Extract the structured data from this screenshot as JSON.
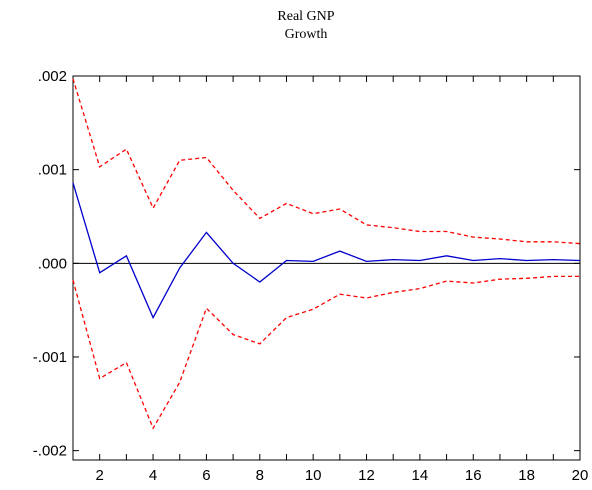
{
  "chart_data": {
    "type": "line",
    "title": "Real GNP",
    "subtitle": "Growth",
    "xlabel": "",
    "ylabel": "",
    "x": [
      1,
      2,
      3,
      4,
      5,
      6,
      7,
      8,
      9,
      10,
      11,
      12,
      13,
      14,
      15,
      16,
      17,
      18,
      19,
      20
    ],
    "xlim": [
      1,
      20
    ],
    "ylim": [
      -0.0021,
      0.002
    ],
    "xticks": [
      2,
      4,
      6,
      8,
      10,
      12,
      14,
      16,
      18,
      20
    ],
    "xtick_labels": [
      "2",
      "4",
      "6",
      "8",
      "10",
      "12",
      "14",
      "16",
      "18",
      "20"
    ],
    "yticks": [
      0.002,
      0.001,
      0.0,
      -0.001,
      -0.002
    ],
    "ytick_labels": [
      ".002",
      ".001",
      ".000",
      "-.001",
      "-.002"
    ],
    "grid": false,
    "zero_line": true,
    "legend": "none",
    "series": [
      {
        "style": "solid",
        "color": "#0000cc",
        "values": [
          0.00086,
          -0.0001,
          8e-05,
          -0.00058,
          -5e-05,
          0.00033,
          0.0,
          -0.0002,
          3e-05,
          2e-05,
          0.00013,
          2e-05,
          4e-05,
          3e-05,
          8e-05,
          3e-05,
          5e-05,
          3e-05,
          4e-05,
          3e-05
        ]
      },
      {
        "style": "dashed",
        "color": "#ff0000",
        "values": [
          0.00197,
          0.00103,
          0.00122,
          0.00059,
          0.0011,
          0.00113,
          0.00078,
          0.00048,
          0.00064,
          0.00053,
          0.00058,
          0.00041,
          0.00038,
          0.00034,
          0.00034,
          0.00028,
          0.00026,
          0.00023,
          0.00023,
          0.00021
        ]
      },
      {
        "style": "dashed",
        "color": "#ff0000",
        "values": [
          -0.00018,
          -0.00123,
          -0.00106,
          -0.00176,
          -0.00127,
          -0.00048,
          -0.00076,
          -0.00086,
          -0.00058,
          -0.00049,
          -0.00033,
          -0.00037,
          -0.00031,
          -0.00027,
          -0.00019,
          -0.00021,
          -0.00017,
          -0.00016,
          -0.00014,
          -0.00014
        ]
      }
    ]
  }
}
